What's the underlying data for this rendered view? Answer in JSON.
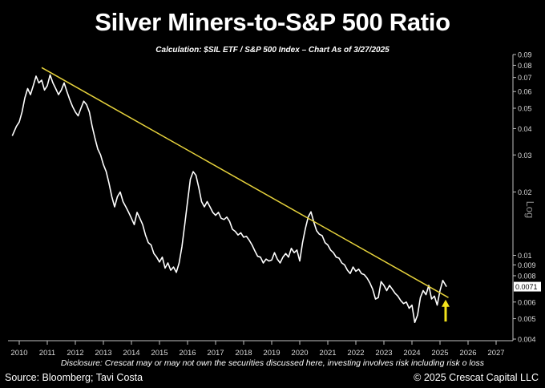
{
  "header": {
    "title": "Silver Miners-to-S&P 500 Ratio",
    "subtitle": "Calculation: $SIL ETF / S&P 500 Index – Chart As of 3/27/2025"
  },
  "footer": {
    "disclosure": "Disclosure: Crescat may or may not own the securities discussed here, investing involves risk including risk o loss",
    "source": "Source: Bloomberg; Tavi Costa",
    "copyright": "© 2025 Crescat Capital LLC"
  },
  "colors": {
    "background": "#000000",
    "series": "#ffffff",
    "trendline": "#e6d23c",
    "arrow": "#f2e21b",
    "axis_text": "#d9d9d9"
  },
  "chart_data": {
    "type": "line",
    "title": "Silver Miners-to-S&P 500 Ratio",
    "y_scale": "log",
    "y_axis_label": "Log",
    "y_axis_side": "right",
    "ylim": [
      0.004,
      0.09
    ],
    "xlim": [
      2009.6,
      2027.6
    ],
    "x_ticks": [
      "2010",
      "2011",
      "2012",
      "2013",
      "2014",
      "2015",
      "2016",
      "2017",
      "2018",
      "2019",
      "2020",
      "2021",
      "2022",
      "2023",
      "2024",
      "2025",
      "2026",
      "2027"
    ],
    "y_ticks": [
      {
        "value": 0.09,
        "label": "0.09"
      },
      {
        "value": 0.08,
        "label": "0.08"
      },
      {
        "value": 0.07,
        "label": "0.07"
      },
      {
        "value": 0.06,
        "label": "0.06"
      },
      {
        "value": 0.05,
        "label": "0.05"
      },
      {
        "value": 0.04,
        "label": "0.04"
      },
      {
        "value": 0.03,
        "label": "0.03"
      },
      {
        "value": 0.02,
        "label": "0.02"
      },
      {
        "value": 0.01,
        "label": "0.01"
      },
      {
        "value": 0.009,
        "label": "0.009"
      },
      {
        "value": 0.008,
        "label": "0.008"
      },
      {
        "value": 0.006,
        "label": "0.006"
      },
      {
        "value": 0.005,
        "label": "0.005"
      },
      {
        "value": 0.004,
        "label": "0.004"
      }
    ],
    "last_value_label": {
      "value": 0.0071,
      "label": "0.0071"
    },
    "grid": false,
    "series": [
      {
        "x": [
          2009.75,
          2009.9,
          2010.0,
          2010.1,
          2010.2,
          2010.3,
          2010.4,
          2010.5,
          2010.6,
          2010.7,
          2010.8,
          2010.9,
          2011.0,
          2011.1,
          2011.2,
          2011.3,
          2011.4,
          2011.5,
          2011.6,
          2011.7,
          2011.8,
          2011.9,
          2012.0,
          2012.1,
          2012.2,
          2012.3,
          2012.4,
          2012.5,
          2012.6,
          2012.7,
          2012.8,
          2012.9,
          2013.0,
          2013.1,
          2013.2,
          2013.3,
          2013.4,
          2013.5,
          2013.6,
          2013.7,
          2013.8,
          2013.9,
          2014.0,
          2014.1,
          2014.2,
          2014.3,
          2014.4,
          2014.5,
          2014.6,
          2014.7,
          2014.8,
          2014.9,
          2015.0,
          2015.1,
          2015.2,
          2015.3,
          2015.4,
          2015.5,
          2015.6,
          2015.7,
          2015.8,
          2015.9,
          2016.0,
          2016.1,
          2016.2,
          2016.3,
          2016.4,
          2016.5,
          2016.6,
          2016.7,
          2016.8,
          2016.9,
          2017.0,
          2017.1,
          2017.2,
          2017.3,
          2017.4,
          2017.5,
          2017.6,
          2017.7,
          2017.8,
          2017.9,
          2018.0,
          2018.1,
          2018.2,
          2018.3,
          2018.4,
          2018.5,
          2018.6,
          2018.7,
          2018.8,
          2018.9,
          2019.0,
          2019.1,
          2019.2,
          2019.3,
          2019.4,
          2019.5,
          2019.6,
          2019.7,
          2019.8,
          2019.9,
          2020.0,
          2020.1,
          2020.2,
          2020.3,
          2020.4,
          2020.5,
          2020.6,
          2020.7,
          2020.8,
          2020.9,
          2021.0,
          2021.1,
          2021.2,
          2021.3,
          2021.4,
          2021.5,
          2021.6,
          2021.7,
          2021.8,
          2021.9,
          2022.0,
          2022.1,
          2022.2,
          2022.3,
          2022.4,
          2022.5,
          2022.6,
          2022.7,
          2022.8,
          2022.9,
          2023.0,
          2023.1,
          2023.2,
          2023.3,
          2023.4,
          2023.5,
          2023.6,
          2023.7,
          2023.8,
          2023.9,
          2024.0,
          2024.1,
          2024.2,
          2024.3,
          2024.4,
          2024.5,
          2024.6,
          2024.7,
          2024.8,
          2024.9,
          2025.0,
          2025.1,
          2025.23
        ],
        "y": [
          0.037,
          0.041,
          0.043,
          0.048,
          0.056,
          0.062,
          0.058,
          0.064,
          0.071,
          0.066,
          0.068,
          0.061,
          0.064,
          0.072,
          0.066,
          0.062,
          0.058,
          0.061,
          0.066,
          0.06,
          0.055,
          0.051,
          0.048,
          0.046,
          0.05,
          0.054,
          0.052,
          0.048,
          0.041,
          0.036,
          0.032,
          0.03,
          0.027,
          0.025,
          0.022,
          0.019,
          0.017,
          0.019,
          0.02,
          0.018,
          0.017,
          0.016,
          0.015,
          0.014,
          0.016,
          0.015,
          0.014,
          0.0125,
          0.0115,
          0.0112,
          0.0102,
          0.0098,
          0.0093,
          0.0098,
          0.0087,
          0.0092,
          0.0085,
          0.0088,
          0.0083,
          0.0092,
          0.011,
          0.014,
          0.018,
          0.023,
          0.025,
          0.024,
          0.021,
          0.018,
          0.017,
          0.018,
          0.017,
          0.016,
          0.0155,
          0.016,
          0.015,
          0.0148,
          0.0152,
          0.0145,
          0.0133,
          0.013,
          0.0125,
          0.0128,
          0.0122,
          0.0123,
          0.0118,
          0.0112,
          0.0105,
          0.0099,
          0.0098,
          0.0092,
          0.0096,
          0.0094,
          0.0095,
          0.0103,
          0.0096,
          0.0092,
          0.0098,
          0.0102,
          0.0098,
          0.0108,
          0.0103,
          0.0106,
          0.0094,
          0.0115,
          0.0134,
          0.0152,
          0.0161,
          0.0144,
          0.0131,
          0.0126,
          0.0124,
          0.0115,
          0.0112,
          0.0106,
          0.0103,
          0.0098,
          0.0097,
          0.0092,
          0.009,
          0.0085,
          0.0082,
          0.0088,
          0.0084,
          0.0086,
          0.0082,
          0.0081,
          0.0078,
          0.0074,
          0.0069,
          0.0062,
          0.0063,
          0.0075,
          0.0072,
          0.0068,
          0.0072,
          0.0069,
          0.0066,
          0.0064,
          0.0061,
          0.0059,
          0.006,
          0.0056,
          0.0058,
          0.0048,
          0.0052,
          0.0063,
          0.0068,
          0.0065,
          0.0072,
          0.0062,
          0.0064,
          0.0058,
          0.0068,
          0.0076,
          0.0071
        ]
      }
    ],
    "trendline": {
      "from": {
        "x": 2010.8,
        "y": 0.078
      },
      "to": {
        "x": 2025.3,
        "y": 0.0063
      }
    },
    "marker": {
      "type": "up-arrow",
      "x": 2025.2,
      "y_from": 0.0052,
      "y_to": 0.006
    }
  }
}
